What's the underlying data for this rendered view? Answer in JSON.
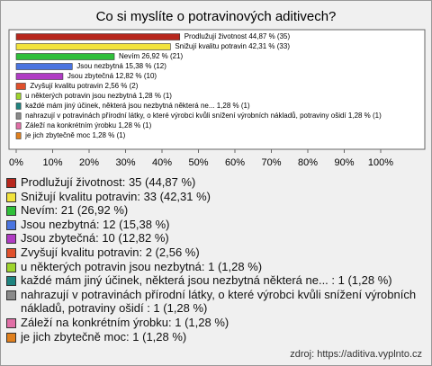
{
  "chart_data": {
    "type": "barh",
    "title": "Co si myslíte o potravinových aditivech?",
    "categories": [
      "Prodlužují životnost",
      "Snižují kvalitu potravin",
      "Nevím",
      "Jsou nezbytná",
      "Jsou zbytečná",
      "Zvyšují kvalitu potravin",
      "u některých potravin jsou nezbytná",
      "každé mám jiný účinek, některá jsou nezbytná některá ne...",
      "nahrazují v potravinách přírodní látky, o které výrobci kvůli snížení výrobních nákladů, potraviny ošidí",
      "Záleží na konkrétním ýrobku",
      "je jich zbytečně moc"
    ],
    "values": [
      44.87,
      42.31,
      26.92,
      15.38,
      12.82,
      2.56,
      1.28,
      1.28,
      1.28,
      1.28,
      1.28
    ],
    "bar_labels": [
      "44,87 % (35)",
      "42,31 % (33)",
      "26,92 % (21)",
      "15,38 % (12)",
      "12,82 % (10)",
      "2,56 % (2)",
      "1,28 % (1)",
      "1,28 % (1)",
      "1,28 % (1)",
      "1,28 % (1)",
      "1,28 % (1)"
    ],
    "legend_labels": [
      "Prodlužují životnost: 35 (44,87 %)",
      "Snižují kvalitu potravin: 33 (42,31 %)",
      "Nevím: 21 (26,92 %)",
      "Jsou nezbytná: 12 (15,38 %)",
      "Jsou zbytečná: 10 (12,82 %)",
      "Zvyšují kvalitu potravin: 2 (2,56 %)",
      "u některých potravin jsou nezbytná: 1 (1,28 %)",
      "každé mám jiný účinek, některá jsou nezbytná některá ne... : 1 (1,28 %)",
      "nahrazují v potravinách přírodní látky, o které výrobci kvůli snížení výrobních nákladů, potraviny ošidí : 1 (1,28 %)",
      "Záleží na konkrétním ýrobku: 1 (1,28 %)",
      "je jich zbytečně moc: 1 (1,28 %)"
    ],
    "colors": [
      "#b8281e",
      "#f2e33c",
      "#2fbf3a",
      "#4a74e0",
      "#b03cc4",
      "#e0502c",
      "#9ed42c",
      "#1f8480",
      "#8a8a8a",
      "#e06fa6",
      "#e0801e"
    ],
    "xlim": [
      0,
      100
    ],
    "xticks": [
      {
        "value": 0,
        "label": "0%"
      },
      {
        "value": 10,
        "label": "10%"
      },
      {
        "value": 20,
        "label": "20%"
      },
      {
        "value": 30,
        "label": "30%"
      },
      {
        "value": 40,
        "label": "40%"
      },
      {
        "value": 50,
        "label": "50%"
      },
      {
        "value": 60,
        "label": "60%"
      },
      {
        "value": 70,
        "label": "70%"
      },
      {
        "value": 80,
        "label": "80%"
      },
      {
        "value": 90,
        "label": "90%"
      },
      {
        "value": 100,
        "label": "100%"
      }
    ],
    "source": "zdroj: https://aditiva.vyplnto.cz"
  }
}
